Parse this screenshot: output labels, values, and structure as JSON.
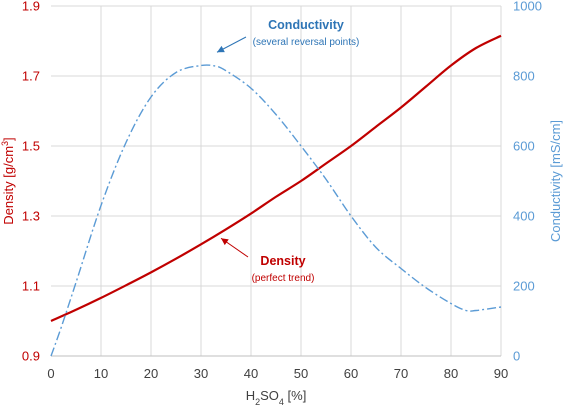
{
  "chart_data": {
    "type": "line",
    "x": {
      "label": "H2SO4 [%]",
      "label_main": "H",
      "label_sub1": "2",
      "label_mid": "SO",
      "label_sub2": "4",
      "label_tail": " [%]",
      "ticks": [
        0,
        10,
        20,
        30,
        40,
        50,
        60,
        70,
        80,
        90
      ],
      "range": [
        0,
        90
      ]
    },
    "y_left": {
      "label": "Density [g/cm3]",
      "label_main": "Density [g/cm",
      "label_sup": "3",
      "label_tail": "]",
      "ticks": [
        "0.9",
        "1.1",
        "1.3",
        "1.5",
        "1.7",
        "1.9"
      ],
      "range": [
        0.9,
        1.9
      ],
      "color": "#c00000"
    },
    "y_right": {
      "label": "Conductivity [mS/cm]",
      "ticks": [
        "0",
        "200",
        "400",
        "600",
        "800",
        "1000"
      ],
      "range": [
        0,
        1000
      ],
      "color": "#5b9bd5"
    },
    "grid": true,
    "series": [
      {
        "name": "Density",
        "axis": "left",
        "color": "#c00000",
        "style": "solid",
        "x": [
          0,
          5,
          10,
          15,
          20,
          25,
          30,
          35,
          40,
          45,
          50,
          55,
          60,
          65,
          70,
          75,
          80,
          85,
          90
        ],
        "y": [
          1.0,
          1.032,
          1.066,
          1.102,
          1.139,
          1.178,
          1.219,
          1.262,
          1.307,
          1.355,
          1.4,
          1.45,
          1.5,
          1.555,
          1.61,
          1.67,
          1.73,
          1.78,
          1.815
        ]
      },
      {
        "name": "Conductivity",
        "axis": "right",
        "color": "#5b9bd5",
        "style": "dashdot",
        "x": [
          0,
          2,
          5,
          10,
          15,
          20,
          25,
          30,
          33,
          35,
          40,
          45,
          50,
          55,
          60,
          65,
          70,
          75,
          80,
          83,
          85,
          90
        ],
        "y": [
          0,
          80,
          210,
          430,
          610,
          740,
          810,
          830,
          828,
          815,
          765,
          690,
          600,
          505,
          400,
          310,
          250,
          195,
          150,
          130,
          130,
          140
        ]
      }
    ],
    "annotations": [
      {
        "id": "conductivity",
        "title": "Conductivity",
        "subtitle": "(several reversal points)",
        "color": "#2e75b6",
        "sub_color": "#2e75b6",
        "arrow_to": [
          32,
          845
        ],
        "arrow_axis": "right"
      },
      {
        "id": "density",
        "title": "Density",
        "subtitle": "(perfect trend)",
        "color": "#c00000",
        "sub_color": "#c00000",
        "arrow_to": [
          33,
          1.245
        ],
        "arrow_axis": "left"
      }
    ]
  }
}
